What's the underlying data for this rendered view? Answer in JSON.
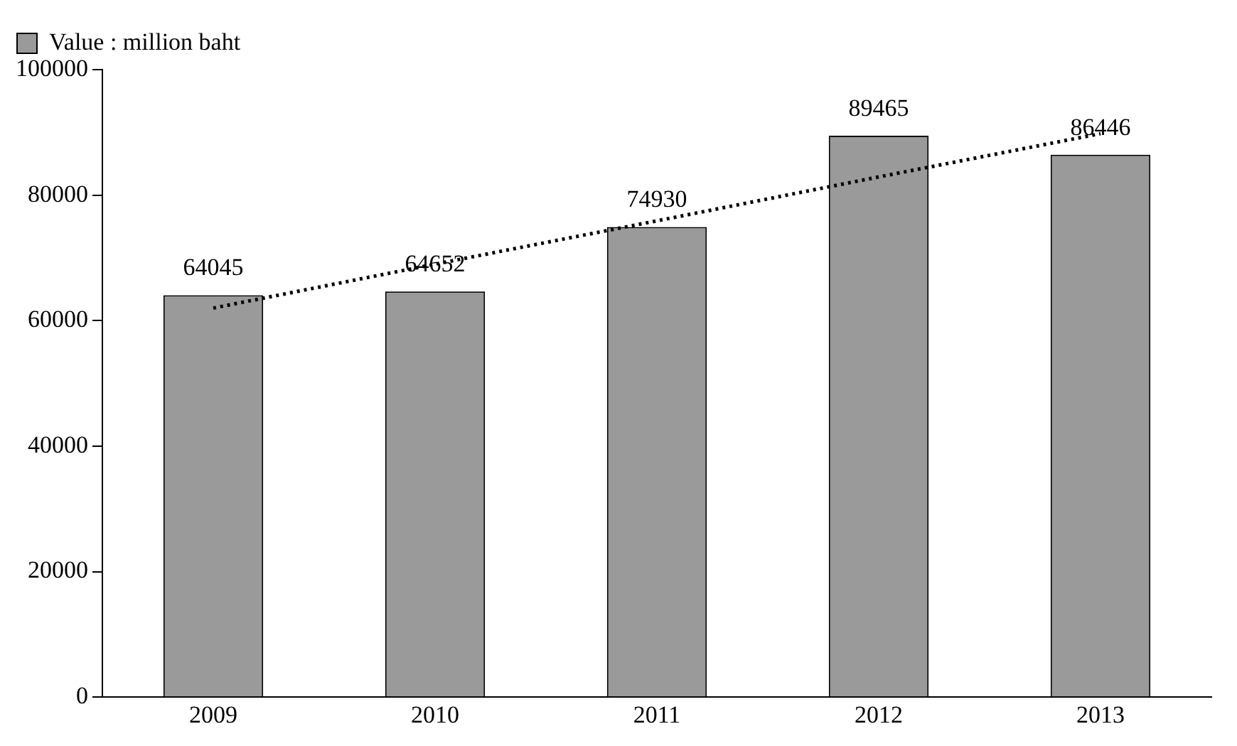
{
  "chart_data": {
    "type": "bar",
    "categories": [
      "2009",
      "2010",
      "2011",
      "2012",
      "2013"
    ],
    "series": [
      {
        "name": "Value : million baht",
        "color": "#9a9a9a",
        "values": [
          64045,
          64652,
          74930,
          89465,
          86446
        ],
        "value_labels": [
          "64045",
          "64652",
          "74930",
          "89465",
          "86446"
        ]
      },
      {
        "type": "line",
        "color": "#000000",
        "line_style": "dotted",
        "marker": "none",
        "values": [
          62000,
          69000,
          75900,
          82900,
          89800
        ]
      }
    ],
    "ylim": [
      0,
      100000
    ],
    "yticks": [
      0,
      20000,
      40000,
      60000,
      80000,
      100000
    ],
    "grid": false,
    "legend": "top left"
  }
}
